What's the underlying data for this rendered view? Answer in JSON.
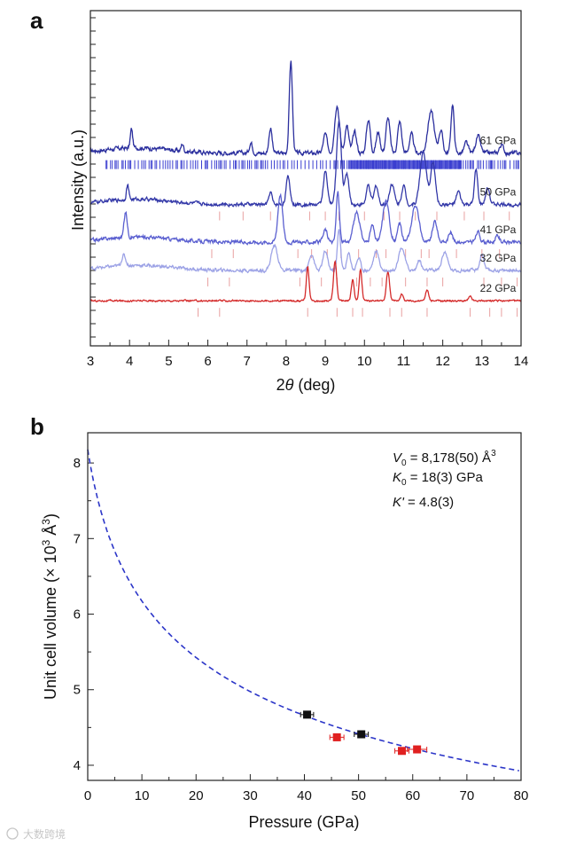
{
  "watermark": "大数跨境",
  "chart_data": [
    {
      "panel_label": "a",
      "type": "line",
      "xlabel_prefix": "2",
      "xlabel_symbol": "θ",
      "xlabel_suffix": " (deg)",
      "ylabel": "Intensity (a.u.)",
      "xlim": [
        3,
        14
      ],
      "xticks": [
        "3",
        "4",
        "5",
        "6",
        "7",
        "8",
        "9",
        "10",
        "11",
        "12",
        "13",
        "14"
      ],
      "series": [
        {
          "name": "61 GPa",
          "color": "#2b2f9e",
          "baseline": 9.2,
          "noise_amp": 0.18,
          "peaks": [
            [
              4.05,
              0.9,
              0.03
            ],
            [
              5.35,
              0.35,
              0.03
            ],
            [
              7.1,
              0.5,
              0.04
            ],
            [
              7.6,
              1.2,
              0.04
            ],
            [
              8.12,
              4.4,
              0.04
            ],
            [
              9.0,
              0.9,
              0.05
            ],
            [
              9.3,
              2.3,
              0.06
            ],
            [
              9.55,
              1.3,
              0.05
            ],
            [
              9.75,
              1.0,
              0.05
            ],
            [
              10.1,
              1.6,
              0.05
            ],
            [
              10.35,
              1.0,
              0.05
            ],
            [
              10.6,
              1.7,
              0.05
            ],
            [
              10.9,
              1.5,
              0.05
            ],
            [
              11.2,
              0.9,
              0.05
            ],
            [
              11.7,
              2.0,
              0.08
            ],
            [
              11.95,
              1.1,
              0.05
            ],
            [
              12.25,
              2.3,
              0.04
            ],
            [
              12.6,
              0.5,
              0.05
            ],
            [
              12.9,
              0.8,
              0.06
            ],
            [
              13.5,
              0.4,
              0.05
            ]
          ],
          "tick_color": "#3b3fd0",
          "tick_start": 3.4,
          "tick_end": 13.95,
          "tick_density": "dense"
        },
        {
          "name": "50 GPa",
          "color": "#3338a8",
          "baseline": 6.75,
          "noise_amp": 0.15,
          "peaks": [
            [
              3.95,
              0.7,
              0.03
            ],
            [
              7.6,
              0.6,
              0.04
            ],
            [
              8.05,
              1.3,
              0.05
            ],
            [
              9.0,
              1.6,
              0.05
            ],
            [
              9.35,
              4.0,
              0.06
            ],
            [
              9.55,
              1.5,
              0.05
            ],
            [
              10.1,
              0.9,
              0.05
            ],
            [
              10.3,
              0.9,
              0.05
            ],
            [
              10.7,
              1.0,
              0.06
            ],
            [
              11.0,
              0.9,
              0.05
            ],
            [
              11.5,
              2.5,
              0.08
            ],
            [
              11.75,
              2.0,
              0.06
            ],
            [
              12.4,
              0.6,
              0.05
            ],
            [
              12.85,
              1.7,
              0.04
            ],
            [
              13.15,
              0.8,
              0.05
            ]
          ],
          "tick_color": "#e8a0a0",
          "ticks": [
            6.3,
            6.9,
            7.6,
            8.6,
            9.0,
            9.35,
            10.0,
            10.5,
            10.9,
            11.3,
            11.85,
            12.55,
            13.05,
            13.7
          ]
        },
        {
          "name": "41 GPa",
          "color": "#5a5fd0",
          "baseline": 4.95,
          "noise_amp": 0.15,
          "peaks": [
            [
              3.9,
              1.2,
              0.04
            ],
            [
              7.85,
              2.3,
              0.06
            ],
            [
              9.0,
              0.6,
              0.05
            ],
            [
              9.32,
              2.4,
              0.04
            ],
            [
              9.8,
              1.4,
              0.08
            ],
            [
              10.2,
              0.8,
              0.05
            ],
            [
              10.55,
              2.0,
              0.08
            ],
            [
              10.9,
              0.9,
              0.05
            ],
            [
              11.3,
              1.8,
              0.09
            ],
            [
              11.8,
              1.0,
              0.06
            ],
            [
              12.2,
              0.5,
              0.05
            ],
            [
              12.9,
              0.5,
              0.05
            ],
            [
              13.4,
              0.3,
              0.05
            ]
          ],
          "tick_color": "#e8a0a0",
          "ticks": [
            6.1,
            6.65,
            8.3,
            8.65,
            9.05,
            9.4,
            9.85,
            10.3,
            10.55,
            11.05,
            11.45,
            11.65,
            12.35,
            13.0,
            13.45
          ]
        },
        {
          "name": "32 GPa",
          "color": "#9da3e6",
          "baseline": 3.6,
          "noise_amp": 0.14,
          "peaks": [
            [
              3.85,
              0.5,
              0.05
            ],
            [
              7.7,
              1.2,
              0.08
            ],
            [
              8.65,
              0.8,
              0.06
            ],
            [
              9.0,
              0.9,
              0.06
            ],
            [
              9.35,
              2.0,
              0.04
            ],
            [
              9.6,
              0.8,
              0.05
            ],
            [
              9.85,
              0.6,
              0.05
            ],
            [
              10.3,
              0.9,
              0.07
            ],
            [
              10.95,
              1.1,
              0.08
            ],
            [
              11.4,
              0.5,
              0.05
            ],
            [
              12.05,
              0.9,
              0.07
            ],
            [
              13.0,
              0.8,
              0.05
            ]
          ],
          "tick_color": "#e8a0a0",
          "ticks": [
            6.0,
            6.55,
            8.35,
            8.9,
            9.3,
            9.8,
            10.15,
            10.45,
            11.05,
            11.6,
            12.0,
            13.05,
            13.5,
            13.9
          ]
        },
        {
          "name": "22 GPa",
          "color": "#d42a2a",
          "baseline": 2.15,
          "noise_amp": 0.07,
          "peaks": [
            [
              8.55,
              1.6,
              0.035
            ],
            [
              9.25,
              1.9,
              0.04
            ],
            [
              9.7,
              1.0,
              0.035
            ],
            [
              9.9,
              1.5,
              0.035
            ],
            [
              10.6,
              1.4,
              0.04
            ],
            [
              10.95,
              0.3,
              0.04
            ],
            [
              11.6,
              0.5,
              0.04
            ],
            [
              12.7,
              0.2,
              0.04
            ]
          ],
          "tick_color": "#e8a0a0",
          "ticks": [
            5.75,
            6.3,
            8.55,
            9.3,
            9.7,
            9.95,
            10.65,
            10.95,
            11.6,
            12.7,
            13.2,
            13.5,
            13.9
          ]
        }
      ]
    },
    {
      "panel_label": "b",
      "type": "scatter",
      "xlabel": "Pressure (GPa)",
      "ylabel_prefix": "Unit cell volume (× 10",
      "ylabel_sup1": "3",
      "ylabel_mid": " Å",
      "ylabel_sup2": "3",
      "ylabel_suffix": ")",
      "xlim": [
        0,
        80
      ],
      "ylim": [
        3.8,
        8.4
      ],
      "xticks": [
        "0",
        "10",
        "20",
        "30",
        "40",
        "50",
        "60",
        "70",
        "80"
      ],
      "yticks": [
        "4",
        "5",
        "6",
        "7",
        "8"
      ],
      "fit": {
        "type": "Birch-Murnaghan EoS",
        "V0": 8.178,
        "K0": 18,
        "Kp": 4.8,
        "style": "dashed",
        "color": "#2b35c8"
      },
      "annotations": {
        "v0_symbol": "V",
        "v0_sub": "0",
        "v0_value": " = 8,178(50) Å",
        "v0_sup": "3",
        "k0_symbol": "K",
        "k0_sub": "0",
        "k0_value": " = 18(3) GPa",
        "kp_symbol": "K'",
        "kp_value": " = 4.8(3)"
      },
      "series": [
        {
          "name": "black points",
          "color": "#111111",
          "points": [
            {
              "x": 40.5,
              "y": 4.67,
              "xerr": 1.2
            },
            {
              "x": 50.5,
              "y": 4.41,
              "xerr": 1.3
            }
          ]
        },
        {
          "name": "red points",
          "color": "#e02020",
          "points": [
            {
              "x": 46.0,
              "y": 4.37,
              "xerr": 1.3
            },
            {
              "x": 58.0,
              "y": 4.19,
              "xerr": 1.3
            },
            {
              "x": 60.8,
              "y": 4.21,
              "xerr": 1.8
            }
          ]
        }
      ]
    }
  ]
}
